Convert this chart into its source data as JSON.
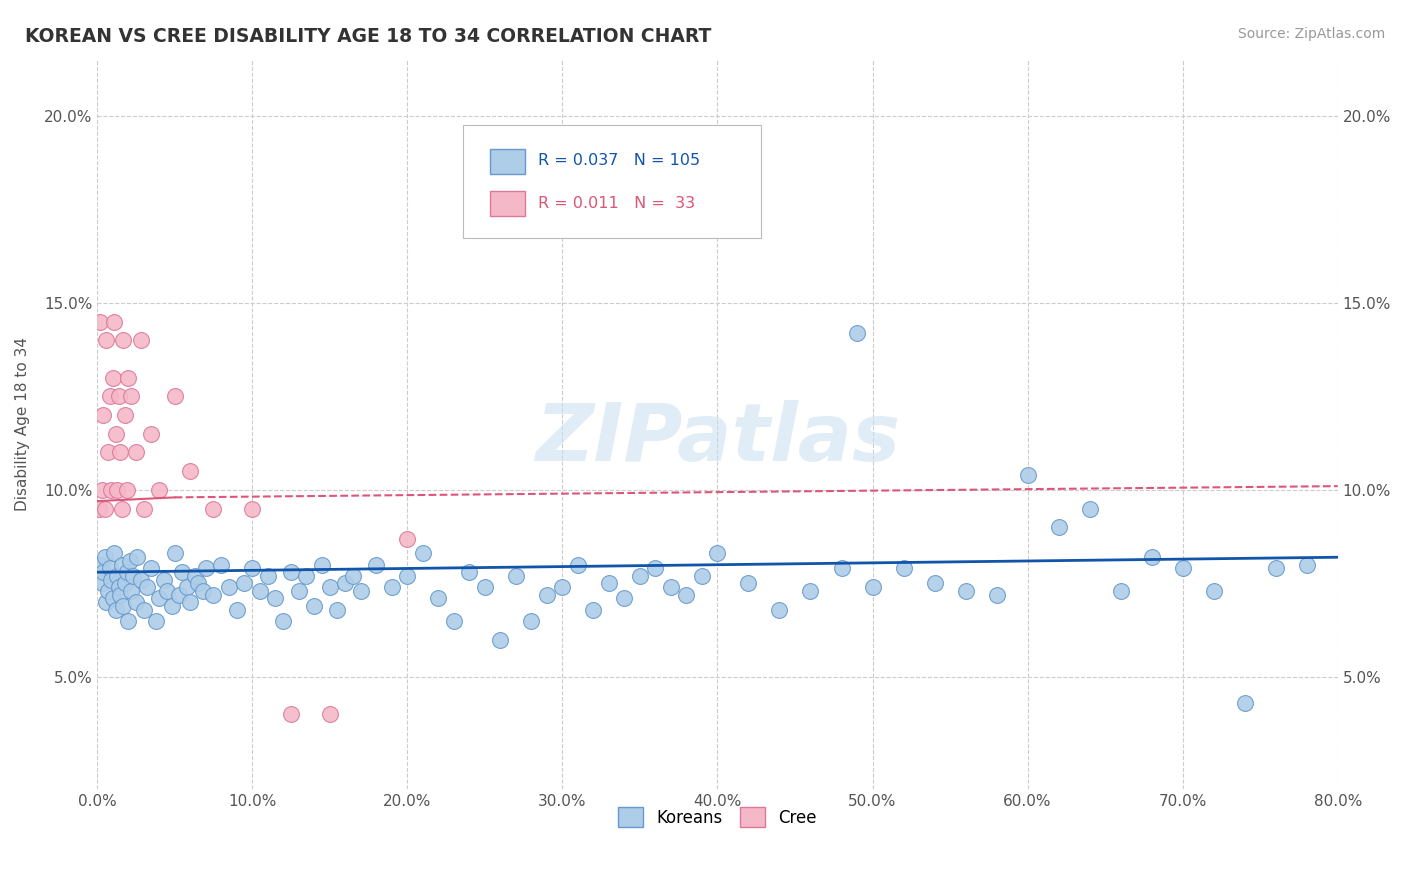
{
  "title": "KOREAN VS CREE DISABILITY AGE 18 TO 34 CORRELATION CHART",
  "source": "Source: ZipAtlas.com",
  "ylabel": "Disability Age 18 to 34",
  "xlim": [
    0.0,
    0.8
  ],
  "ylim": [
    0.02,
    0.215
  ],
  "xticks": [
    0.0,
    0.1,
    0.2,
    0.3,
    0.4,
    0.5,
    0.6,
    0.7,
    0.8
  ],
  "xtick_labels": [
    "0.0%",
    "10.0%",
    "20.0%",
    "30.0%",
    "40.0%",
    "50.0%",
    "60.0%",
    "70.0%",
    "80.0%"
  ],
  "yticks": [
    0.05,
    0.1,
    0.15,
    0.2
  ],
  "ytick_labels": [
    "5.0%",
    "10.0%",
    "15.0%",
    "20.0%"
  ],
  "korean_color": "#aecde8",
  "cree_color": "#f5b8c8",
  "korean_edge": "#6699cc",
  "cree_edge": "#dd7799",
  "trendline_korean": "#1155aa",
  "trendline_cree": "#dd5577",
  "watermark": "ZIPatlas",
  "legend_R_korean": "0.037",
  "legend_N_korean": "105",
  "legend_R_cree": "0.011",
  "legend_N_cree": "33",
  "korean_x": [
    0.002,
    0.003,
    0.004,
    0.005,
    0.006,
    0.007,
    0.008,
    0.009,
    0.01,
    0.011,
    0.012,
    0.013,
    0.014,
    0.015,
    0.016,
    0.017,
    0.018,
    0.019,
    0.02,
    0.021,
    0.022,
    0.023,
    0.025,
    0.026,
    0.028,
    0.03,
    0.032,
    0.035,
    0.038,
    0.04,
    0.043,
    0.045,
    0.048,
    0.05,
    0.053,
    0.055,
    0.058,
    0.06,
    0.063,
    0.065,
    0.068,
    0.07,
    0.075,
    0.08,
    0.085,
    0.09,
    0.095,
    0.1,
    0.105,
    0.11,
    0.115,
    0.12,
    0.125,
    0.13,
    0.135,
    0.14,
    0.145,
    0.15,
    0.155,
    0.16,
    0.165,
    0.17,
    0.18,
    0.19,
    0.2,
    0.21,
    0.22,
    0.23,
    0.24,
    0.25,
    0.26,
    0.27,
    0.28,
    0.29,
    0.3,
    0.31,
    0.32,
    0.33,
    0.34,
    0.35,
    0.36,
    0.37,
    0.38,
    0.39,
    0.4,
    0.42,
    0.44,
    0.46,
    0.48,
    0.49,
    0.5,
    0.52,
    0.54,
    0.56,
    0.58,
    0.6,
    0.62,
    0.64,
    0.66,
    0.68,
    0.7,
    0.72,
    0.74,
    0.76,
    0.78
  ],
  "korean_y": [
    0.08,
    0.075,
    0.078,
    0.082,
    0.07,
    0.073,
    0.079,
    0.076,
    0.071,
    0.083,
    0.068,
    0.077,
    0.074,
    0.072,
    0.08,
    0.069,
    0.075,
    0.078,
    0.065,
    0.081,
    0.073,
    0.077,
    0.07,
    0.082,
    0.076,
    0.068,
    0.074,
    0.079,
    0.065,
    0.071,
    0.076,
    0.073,
    0.069,
    0.083,
    0.072,
    0.078,
    0.074,
    0.07,
    0.077,
    0.075,
    0.073,
    0.079,
    0.072,
    0.08,
    0.074,
    0.068,
    0.075,
    0.079,
    0.073,
    0.077,
    0.071,
    0.065,
    0.078,
    0.073,
    0.077,
    0.069,
    0.08,
    0.074,
    0.068,
    0.075,
    0.077,
    0.073,
    0.08,
    0.074,
    0.077,
    0.083,
    0.071,
    0.065,
    0.078,
    0.074,
    0.06,
    0.077,
    0.065,
    0.072,
    0.074,
    0.08,
    0.068,
    0.075,
    0.071,
    0.077,
    0.079,
    0.074,
    0.072,
    0.077,
    0.083,
    0.075,
    0.068,
    0.073,
    0.079,
    0.142,
    0.074,
    0.079,
    0.075,
    0.073,
    0.072,
    0.104,
    0.09,
    0.095,
    0.073,
    0.082,
    0.079,
    0.073,
    0.043,
    0.079,
    0.08
  ],
  "cree_x": [
    0.001,
    0.002,
    0.003,
    0.004,
    0.005,
    0.006,
    0.007,
    0.008,
    0.009,
    0.01,
    0.011,
    0.012,
    0.013,
    0.014,
    0.015,
    0.016,
    0.017,
    0.018,
    0.019,
    0.02,
    0.022,
    0.025,
    0.028,
    0.03,
    0.035,
    0.04,
    0.05,
    0.06,
    0.075,
    0.1,
    0.125,
    0.15,
    0.2
  ],
  "cree_y": [
    0.095,
    0.145,
    0.1,
    0.12,
    0.095,
    0.14,
    0.11,
    0.125,
    0.1,
    0.13,
    0.145,
    0.115,
    0.1,
    0.125,
    0.11,
    0.095,
    0.14,
    0.12,
    0.1,
    0.13,
    0.125,
    0.11,
    0.14,
    0.095,
    0.115,
    0.1,
    0.125,
    0.105,
    0.095,
    0.095,
    0.04,
    0.04,
    0.087
  ],
  "cree_trendline_start_y": 0.097,
  "cree_trendline_end_y": 0.101,
  "korean_trendline_start_y": 0.078,
  "korean_trendline_end_y": 0.082
}
